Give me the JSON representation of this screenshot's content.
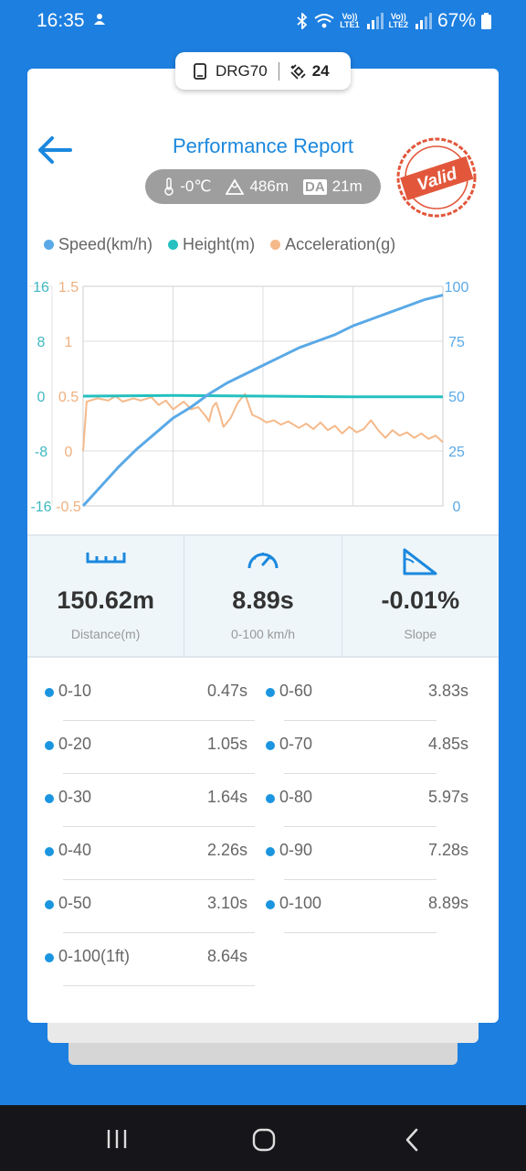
{
  "status": {
    "time": "16:35",
    "battery": "67%",
    "sim1": "LTE1",
    "sim2": "LTE2",
    "volte": "Vo))"
  },
  "device": {
    "name": "DRG70",
    "satellites": "24"
  },
  "header": {
    "title": "Performance Report",
    "stamp": "Valid"
  },
  "conditions": {
    "temperature": "-0℃",
    "altitude": "486m",
    "da_badge": "DA",
    "density_altitude": "21m"
  },
  "legend": [
    {
      "label": "Speed(km/h)",
      "color": "#5aa9e6"
    },
    {
      "label": "Height(m)",
      "color": "#26c0c0"
    },
    {
      "label": "Acceleration(g)",
      "color": "#f5b98a"
    }
  ],
  "chart_data": {
    "type": "line",
    "x_gridlines": 4,
    "axes": {
      "height_ticks": [
        "16",
        "8",
        "0",
        "-8",
        "-16"
      ],
      "accel_ticks": [
        "1.5",
        "1",
        "0.5",
        "0",
        "-0.5"
      ],
      "speed_ticks": [
        "100",
        "75",
        "50",
        "25",
        "0"
      ],
      "height_range": [
        -16,
        16
      ],
      "accel_range": [
        -0.5,
        1.5
      ],
      "speed_range": [
        0,
        100
      ]
    },
    "series": [
      {
        "name": "Speed(km/h)",
        "color": "#5aa9e6",
        "axis": "speed",
        "points": [
          [
            0,
            0
          ],
          [
            0.05,
            9
          ],
          [
            0.1,
            18
          ],
          [
            0.15,
            26
          ],
          [
            0.2,
            33
          ],
          [
            0.25,
            40
          ],
          [
            0.3,
            45
          ],
          [
            0.35,
            51
          ],
          [
            0.4,
            56
          ],
          [
            0.45,
            60
          ],
          [
            0.5,
            64
          ],
          [
            0.55,
            68
          ],
          [
            0.6,
            72
          ],
          [
            0.65,
            75
          ],
          [
            0.7,
            78
          ],
          [
            0.75,
            82
          ],
          [
            0.8,
            85
          ],
          [
            0.85,
            88
          ],
          [
            0.9,
            91
          ],
          [
            0.95,
            94
          ],
          [
            1.0,
            96
          ]
        ]
      },
      {
        "name": "Height(m)",
        "color": "#26c0c0",
        "axis": "height",
        "points": [
          [
            0,
            0
          ],
          [
            0.25,
            0.1
          ],
          [
            0.5,
            0
          ],
          [
            0.75,
            -0.1
          ],
          [
            1.0,
            -0.1
          ]
        ]
      },
      {
        "name": "Acceleration(g)",
        "color": "#f5b98a",
        "axis": "accel",
        "points": [
          [
            0,
            0
          ],
          [
            0.01,
            0.45
          ],
          [
            0.04,
            0.48
          ],
          [
            0.07,
            0.46
          ],
          [
            0.09,
            0.5
          ],
          [
            0.11,
            0.45
          ],
          [
            0.14,
            0.48
          ],
          [
            0.16,
            0.46
          ],
          [
            0.19,
            0.49
          ],
          [
            0.21,
            0.42
          ],
          [
            0.23,
            0.46
          ],
          [
            0.25,
            0.38
          ],
          [
            0.28,
            0.45
          ],
          [
            0.3,
            0.38
          ],
          [
            0.32,
            0.4
          ],
          [
            0.34,
            0.32
          ],
          [
            0.35,
            0.27
          ],
          [
            0.36,
            0.4
          ],
          [
            0.37,
            0.44
          ],
          [
            0.38,
            0.34
          ],
          [
            0.39,
            0.22
          ],
          [
            0.41,
            0.3
          ],
          [
            0.43,
            0.44
          ],
          [
            0.45,
            0.52
          ],
          [
            0.47,
            0.33
          ],
          [
            0.49,
            0.3
          ],
          [
            0.51,
            0.26
          ],
          [
            0.53,
            0.28
          ],
          [
            0.55,
            0.24
          ],
          [
            0.57,
            0.27
          ],
          [
            0.6,
            0.21
          ],
          [
            0.62,
            0.25
          ],
          [
            0.64,
            0.2
          ],
          [
            0.66,
            0.26
          ],
          [
            0.68,
            0.19
          ],
          [
            0.7,
            0.23
          ],
          [
            0.72,
            0.16
          ],
          [
            0.74,
            0.22
          ],
          [
            0.76,
            0.17
          ],
          [
            0.78,
            0.2
          ],
          [
            0.8,
            0.28
          ],
          [
            0.82,
            0.19
          ],
          [
            0.84,
            0.12
          ],
          [
            0.86,
            0.19
          ],
          [
            0.88,
            0.14
          ],
          [
            0.9,
            0.17
          ],
          [
            0.92,
            0.12
          ],
          [
            0.94,
            0.16
          ],
          [
            0.96,
            0.11
          ],
          [
            0.98,
            0.14
          ],
          [
            1.0,
            0.08
          ]
        ]
      }
    ]
  },
  "stats": [
    {
      "icon": "ruler-icon",
      "value": "150.62m",
      "label": "Distance(m)"
    },
    {
      "icon": "speedometer-icon",
      "value": "8.89s",
      "label": "0-100 km/h"
    },
    {
      "icon": "slope-icon",
      "value": "-0.01%",
      "label": "Slope"
    }
  ],
  "times": [
    {
      "label": "0-10",
      "value": "0.47s"
    },
    {
      "label": "0-60",
      "value": "3.83s"
    },
    {
      "label": "0-20",
      "value": "1.05s"
    },
    {
      "label": "0-70",
      "value": "4.85s"
    },
    {
      "label": "0-30",
      "value": "1.64s"
    },
    {
      "label": "0-80",
      "value": "5.97s"
    },
    {
      "label": "0-40",
      "value": "2.26s"
    },
    {
      "label": "0-90",
      "value": "7.28s"
    },
    {
      "label": "0-50",
      "value": "3.10s"
    },
    {
      "label": "0-100",
      "value": "8.89s"
    },
    {
      "label": "0-100(1ft)",
      "value": "8.64s"
    }
  ],
  "nav": {
    "recents": "recents-icon",
    "home": "home-icon",
    "back": "back-icon"
  }
}
